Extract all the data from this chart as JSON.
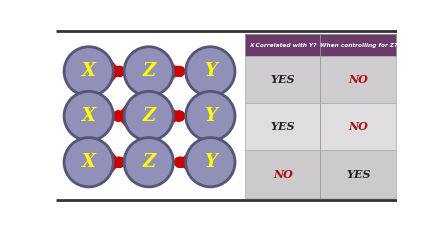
{
  "bg_color": "#ffffff",
  "left_bg": "#ffffff",
  "circle_color": "#9090b8",
  "circle_edge_color": "#555577",
  "label_color": "#ffff00",
  "arrow_color": "#cc0000",
  "rows": [
    {
      "nodes": [
        "X",
        "Z",
        "Y"
      ],
      "arrows": [
        "right",
        "right"
      ]
    },
    {
      "nodes": [
        "X",
        "Z",
        "Y"
      ],
      "arrows": [
        "left",
        "right"
      ]
    },
    {
      "nodes": [
        "X",
        "Z",
        "Y"
      ],
      "arrows": [
        "right",
        "left"
      ]
    }
  ],
  "table_header_bg": "#6b3a6b",
  "table_header_color": "#ffffff",
  "table_col1": "X Correlated with Y?",
  "table_col2": "When controlling for Z?",
  "table_rows": [
    [
      "YES",
      "NO"
    ],
    [
      "YES",
      "NO"
    ],
    [
      "NO",
      "YES"
    ]
  ],
  "table_yes_color": "#222222",
  "table_no_color": "#aa1111",
  "table_cell_bg_1": "#d0cdd0",
  "table_cell_bg_2": "#e0dde0",
  "table_cell_bg_3": "#cccacc",
  "outer_top_border": "#333333",
  "outer_bot_border": "#333333"
}
